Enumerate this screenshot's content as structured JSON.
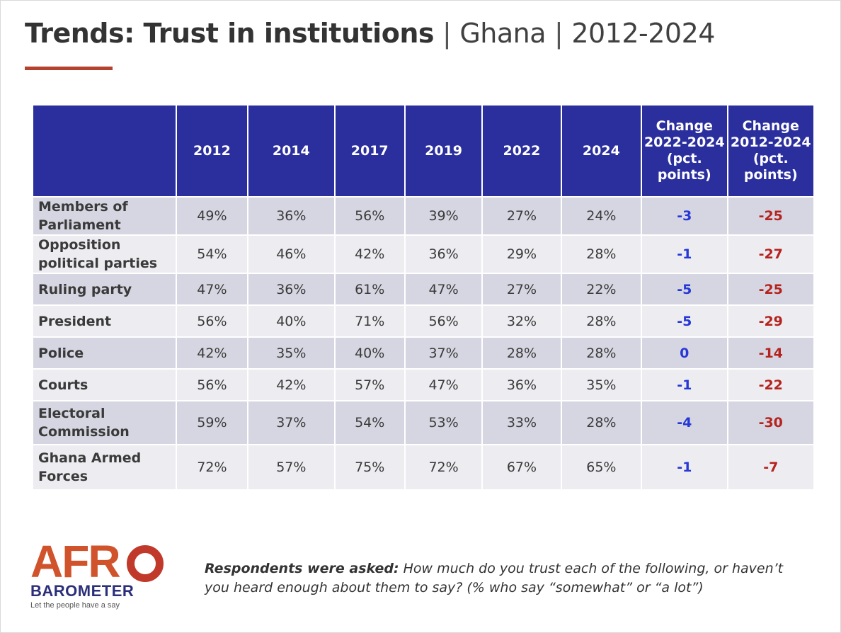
{
  "title": {
    "bold": "Trends: Trust in institutions",
    "separator": "|",
    "country": "Ghana",
    "period": "2012-2024"
  },
  "table": {
    "columns": [
      "",
      "2012",
      "2014",
      "2017",
      "2019",
      "2022",
      "2024",
      "Change 2022-2024 (pct. points)",
      "Change 2012-2024 (pct. points)"
    ],
    "rows": [
      {
        "label": "Members of Parliament",
        "values": [
          "49%",
          "36%",
          "56%",
          "39%",
          "27%",
          "24%"
        ],
        "change_recent": "-3",
        "change_total": "-25"
      },
      {
        "label": "Opposition political parties",
        "values": [
          "54%",
          "46%",
          "42%",
          "36%",
          "29%",
          "28%"
        ],
        "change_recent": "-1",
        "change_total": "-27"
      },
      {
        "label": "Ruling party",
        "values": [
          "47%",
          "36%",
          "61%",
          "47%",
          "27%",
          "22%"
        ],
        "change_recent": "-5",
        "change_total": "-25"
      },
      {
        "label": "President",
        "values": [
          "56%",
          "40%",
          "71%",
          "56%",
          "32%",
          "28%"
        ],
        "change_recent": "-5",
        "change_total": "-29"
      },
      {
        "label": "Police",
        "values": [
          "42%",
          "35%",
          "40%",
          "37%",
          "28%",
          "28%"
        ],
        "change_recent": "0",
        "change_total": "-14"
      },
      {
        "label": "Courts",
        "values": [
          "56%",
          "42%",
          "57%",
          "47%",
          "36%",
          "35%"
        ],
        "change_recent": "-1",
        "change_total": "-22"
      },
      {
        "label": "Electoral Commission",
        "values": [
          "59%",
          "37%",
          "54%",
          "53%",
          "33%",
          "28%"
        ],
        "change_recent": "-4",
        "change_total": "-30"
      },
      {
        "label": "Ghana Armed Forces",
        "values": [
          "72%",
          "57%",
          "75%",
          "72%",
          "67%",
          "65%"
        ],
        "change_recent": "-1",
        "change_total": "-7"
      }
    ]
  },
  "logo": {
    "afr": "AFR",
    "barometer": "BAROMETER",
    "tagline": "Let the people have a say"
  },
  "note": {
    "lead": "Respondents were asked:",
    "text": " How much do you trust each of the following, or haven’t you heard enough about them to say? (% who say “somewhat” or “a lot”)"
  },
  "colors": {
    "header_bg": "#2b2f9e",
    "accent_rule": "#b4422f",
    "change_recent": "#2638d6",
    "change_total": "#b5231e",
    "row_odd": "#d6d6e2",
    "row_even": "#ececf1"
  }
}
